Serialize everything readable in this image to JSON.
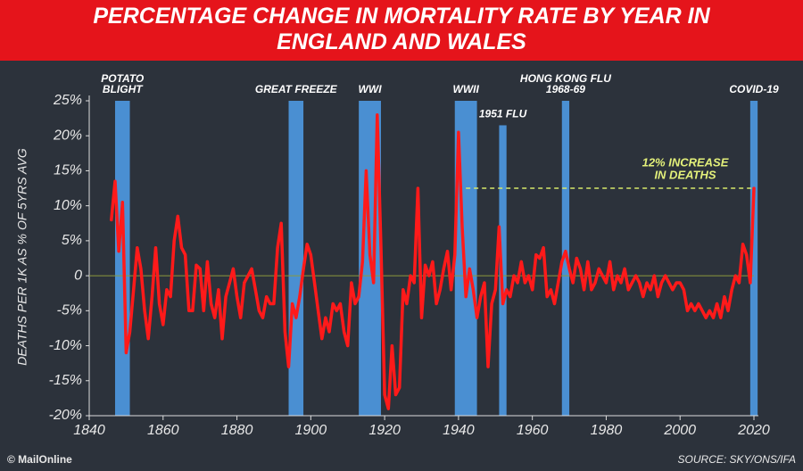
{
  "chart_data": {
    "type": "line",
    "title": "PERCENTAGE CHANGE IN MORTALITY RATE BY YEAR IN ENGLAND AND WALES",
    "ylabel": "DEATHS PER 1K AS % OF 5YRS AVG",
    "credit": "© MailOnline",
    "source": "SOURCE: SKY/ONS/IFA",
    "xlim": [
      1840,
      2020
    ],
    "xticks": [
      1840,
      1860,
      1880,
      1900,
      1920,
      1940,
      1960,
      1980,
      2000,
      2020
    ],
    "ylim": [
      -20,
      25
    ],
    "yticks": [
      {
        "value": -20,
        "label": "-20%"
      },
      {
        "value": -15,
        "label": "-15%"
      },
      {
        "value": -10,
        "label": "-10%"
      },
      {
        "value": -5,
        "label": "-5%"
      },
      0,
      {
        "value": 5,
        "label": "5%"
      },
      {
        "value": 10,
        "label": "10%"
      },
      {
        "value": 15,
        "label": "15%"
      },
      {
        "value": 20,
        "label": "20%"
      },
      {
        "value": 25,
        "label": "25%"
      }
    ],
    "periods": [
      {
        "label": [
          "POTATO",
          "BLIGHT"
        ],
        "start": 1847,
        "end": 1851,
        "top": 25
      },
      {
        "label": [
          "GREAT FREEZE"
        ],
        "start": 1894,
        "end": 1898,
        "top": 25
      },
      {
        "label": [
          "WWI"
        ],
        "start": 1913,
        "end": 1919,
        "top": 25
      },
      {
        "label": [
          "WWII"
        ],
        "start": 1939,
        "end": 1945,
        "top": 25
      },
      {
        "label": [
          "1951 FLU"
        ],
        "start": 1951,
        "end": 1953,
        "top": 21.5
      },
      {
        "label": [
          "HONG KONG FLU",
          "1968-69"
        ],
        "start": 1968,
        "end": 1970,
        "top": 25
      },
      {
        "label": [
          "COVID-19"
        ],
        "start": 2019,
        "end": 2021,
        "top": 25
      }
    ],
    "reference": {
      "label": [
        "12% INCREASE",
        "IN DEATHS"
      ],
      "value": 12.5,
      "start": 1942,
      "end": 2020,
      "color": "#d6e86a"
    },
    "series": [
      {
        "color": "#ff1a1a",
        "x": [
          1846,
          1847,
          1848,
          1849,
          1850,
          1851,
          1852,
          1853,
          1854,
          1855,
          1856,
          1857,
          1858,
          1859,
          1860,
          1861,
          1862,
          1863,
          1864,
          1865,
          1866,
          1867,
          1868,
          1869,
          1870,
          1871,
          1872,
          1873,
          1874,
          1875,
          1876,
          1877,
          1878,
          1879,
          1880,
          1881,
          1882,
          1883,
          1884,
          1885,
          1886,
          1887,
          1888,
          1889,
          1890,
          1891,
          1892,
          1893,
          1894,
          1895,
          1896,
          1897,
          1898,
          1899,
          1900,
          1901,
          1902,
          1903,
          1904,
          1905,
          1906,
          1907,
          1908,
          1909,
          1910,
          1911,
          1912,
          1913,
          1914,
          1915,
          1916,
          1917,
          1918,
          1919,
          1920,
          1921,
          1922,
          1923,
          1924,
          1925,
          1926,
          1927,
          1928,
          1929,
          1930,
          1931,
          1932,
          1933,
          1934,
          1935,
          1936,
          1937,
          1938,
          1939,
          1940,
          1941,
          1942,
          1943,
          1944,
          1945,
          1946,
          1947,
          1948,
          1949,
          1950,
          1951,
          1952,
          1953,
          1954,
          1955,
          1956,
          1957,
          1958,
          1959,
          1960,
          1961,
          1962,
          1963,
          1964,
          1965,
          1966,
          1967,
          1968,
          1969,
          1970,
          1971,
          1972,
          1973,
          1974,
          1975,
          1976,
          1977,
          1978,
          1979,
          1980,
          1981,
          1982,
          1983,
          1984,
          1985,
          1986,
          1987,
          1988,
          1989,
          1990,
          1991,
          1992,
          1993,
          1994,
          1995,
          1996,
          1997,
          1998,
          1999,
          2000,
          2001,
          2002,
          2003,
          2004,
          2005,
          2006,
          2007,
          2008,
          2009,
          2010,
          2011,
          2012,
          2013,
          2014,
          2015,
          2016,
          2017,
          2018,
          2019,
          2020
        ],
        "values": [
          8,
          13.5,
          3.5,
          10.5,
          -11,
          -8,
          -2,
          4,
          1,
          -5,
          -9,
          -3,
          4,
          -4,
          -7,
          -2,
          -3,
          5,
          8.5,
          4,
          3,
          -5,
          -5,
          1.5,
          1,
          -5,
          2,
          -4,
          -6,
          -2,
          -9,
          -3,
          -1,
          1,
          -3,
          -6,
          -1,
          0,
          1,
          -2,
          -5,
          -6,
          -3,
          -4,
          -4,
          4,
          7.5,
          -8,
          -13,
          -4,
          -6,
          -3,
          1,
          4.5,
          3,
          -1,
          -5,
          -9,
          -6,
          -8,
          -4,
          -5,
          -4,
          -8,
          -10,
          -1,
          -4,
          -3,
          2,
          15,
          3,
          -1,
          23,
          4,
          -17,
          -19,
          -10,
          -17,
          -16,
          -2,
          -4,
          0,
          -1,
          12.5,
          -6,
          1.5,
          0,
          2,
          -4,
          -2,
          1,
          3.5,
          -2,
          3,
          20.5,
          7,
          -3,
          1,
          -2,
          -6,
          -3,
          -1,
          -13,
          -4,
          -2,
          7,
          -4,
          -2,
          -3,
          0,
          -1,
          2,
          -1,
          0,
          -2,
          3,
          2.5,
          4,
          -3,
          -2,
          -4,
          -1,
          2,
          3.5,
          1,
          -1,
          2.5,
          1,
          -2,
          2,
          -2,
          -1,
          1,
          0,
          -1,
          2,
          -2,
          0,
          -1,
          1,
          -2,
          -1,
          0,
          -1,
          -3,
          -1,
          -2,
          0,
          -3,
          -1,
          0,
          -1,
          -2,
          -1,
          -1,
          -2,
          -5,
          -4,
          -5,
          -4,
          -5,
          -6,
          -5,
          -6,
          -4,
          -6,
          -3,
          -5,
          -2,
          0,
          -1,
          4.5,
          3,
          -1,
          12.5
        ]
      }
    ],
    "period_color": "#4a8fd2",
    "zero_line_color": "#8c9a3c"
  }
}
